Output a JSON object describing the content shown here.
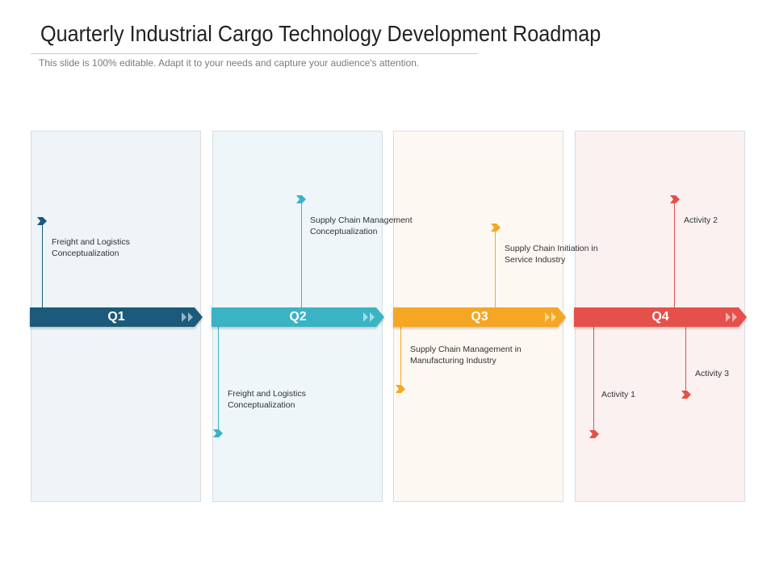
{
  "slide": {
    "title": "Quarterly Industrial Cargo Technology Development Roadmap",
    "subtitle": "This slide is 100% editable. Adapt it to your needs and capture your audience's attention."
  },
  "colors": {
    "q1": "#1b5a7a",
    "q2": "#3ab3c5",
    "q3": "#f5a623",
    "q4": "#e5504a"
  },
  "quarters": [
    {
      "label": "Q1",
      "notes": [
        {
          "lines": [
            "Freight and Logistics",
            "Conceptualization"
          ]
        }
      ]
    },
    {
      "label": "Q2",
      "notes": [
        {
          "lines": [
            "Supply Chain Management",
            "Conceptualization"
          ]
        },
        {
          "lines": [
            "Freight and Logistics",
            "Conceptualization"
          ]
        }
      ]
    },
    {
      "label": "Q3",
      "notes": [
        {
          "lines": [
            "Supply Chain Initiation in",
            "Service Industry"
          ]
        },
        {
          "lines": [
            "Supply Chain Management in",
            "Manufacturing Industry"
          ]
        }
      ]
    },
    {
      "label": "Q4",
      "notes": [
        {
          "lines": [
            "Activity 2"
          ]
        },
        {
          "lines": [
            "Activity 3"
          ]
        },
        {
          "lines": [
            "Activity 1"
          ]
        }
      ]
    }
  ]
}
